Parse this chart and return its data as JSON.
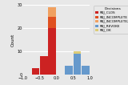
{
  "title": "",
  "xlabel": "",
  "ylabel": "Count",
  "legend_title": "Decisions",
  "background_color": "#e8e8e8",
  "grid_color": "#ffffff",
  "categories": [
    {
      "label": "REJ_CLOS",
      "color": "#cc2222"
    },
    {
      "label": "REJ_INCOMPLETE",
      "color": "#e05020"
    },
    {
      "label": "REJ_INCOMPLETE2",
      "color": "#f0a060"
    },
    {
      "label": "REJ_REVOKE",
      "color": "#6699cc"
    },
    {
      "label": "REJ_OK",
      "color": "#ddcc77"
    }
  ],
  "bins": [
    -1.0,
    -0.75,
    -0.5,
    -0.25,
    0.0,
    0.25,
    0.5,
    0.75,
    1.0
  ],
  "series": {
    "REJ_CLOS": [
      0,
      3,
      8,
      20,
      0,
      0,
      0,
      0
    ],
    "REJ_INCOMPLETE": [
      0,
      0,
      0,
      5,
      0,
      0,
      0,
      0
    ],
    "REJ_INCOMPLETE2": [
      0,
      0,
      0,
      4,
      0,
      0,
      0,
      0
    ],
    "REJ_REVOKE": [
      0,
      0,
      0,
      0,
      0,
      4,
      9,
      4
    ],
    "REJ_OK": [
      0,
      0,
      0,
      0,
      0,
      0,
      1,
      0
    ]
  },
  "ylim": [
    0,
    30
  ],
  "yticks": [
    0,
    10,
    20,
    30
  ],
  "xlim": [
    -1.0,
    1.0
  ],
  "legend_labels": [
    "REJ_CLOS",
    "REJ_INCOMPLETE",
    "REJ_INCOMPLETE2",
    "REJ_REVOKE",
    "REJ_OK"
  ],
  "legend_colors": [
    "#cc2222",
    "#e05020",
    "#f0a060",
    "#6699cc",
    "#ddcc77"
  ]
}
